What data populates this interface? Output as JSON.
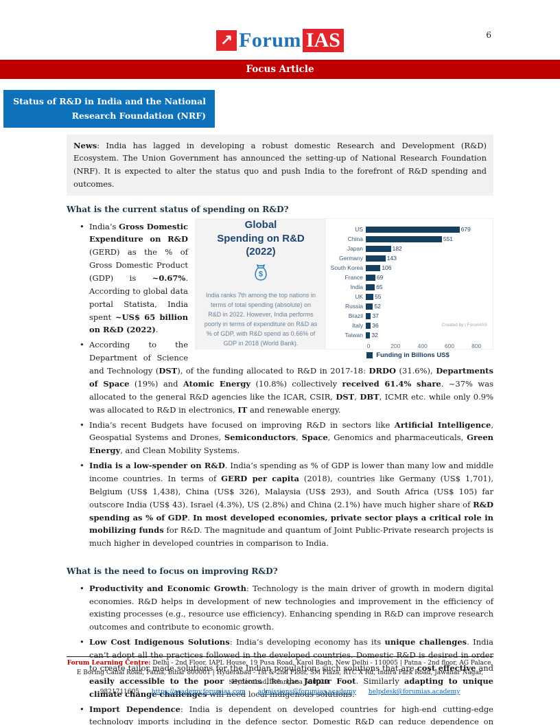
{
  "page": {
    "number": "6"
  },
  "logo": {
    "arrow": "↗",
    "forum": "Forum",
    "ias": "IAS"
  },
  "banner": {
    "label": "Focus Article"
  },
  "title_box": {
    "line1": "Status of R&D in India and the National",
    "line2": "Research Foundation (NRF)"
  },
  "news": {
    "label": "News",
    "text": ": India has lagged in developing a robust domestic Research and Development (R&D) Ecosystem. The Union Government has announced the setting-up of National Research Foundation (NRF). It is expected to alter the status quo and push India to the forefront of R&D spending and outcomes."
  },
  "infographic": {
    "title_line1": "Global",
    "title_line2": "Spending on R&D",
    "title_line3": "(2022)",
    "icon": "money-bag-icon",
    "description": "India ranks 7th among the top nations in terms of total spending (absolute) on R&D in 2022. However, India performs poorly in terms of expenditure on R&D as % of GDP, with R&D spend as 0.66% of GDP in 2018 (World Bank).",
    "credit": "Created by | ForumIAS"
  },
  "chart_data": {
    "type": "bar",
    "orientation": "horizontal",
    "title": "Global Spending on R&D (2022)",
    "categories": [
      "US",
      "China",
      "Japan",
      "Germany",
      "South Korea",
      "France",
      "India",
      "UK",
      "Russia",
      "Brazil",
      "Italy",
      "Taiwan"
    ],
    "values": [
      679,
      551,
      182,
      143,
      106,
      69,
      65,
      55,
      52,
      37,
      36,
      32
    ],
    "xlim": [
      0,
      880
    ],
    "xticks": [
      0,
      200,
      400,
      600,
      800
    ],
    "legend": "Funding in Billions US$",
    "legend_position": "bottom",
    "grid": false,
    "bar_color": "#16405f"
  },
  "sections": [
    {
      "heading": "What is the current status of spending on R&D?",
      "bullets": [
        [
          {
            "t": "India’s "
          },
          {
            "b": true,
            "t": "Gross Domestic Expenditure on R&D"
          },
          {
            "t": " (GERD) as the % of Gross Domestic Product (GDP) is "
          },
          {
            "b": true,
            "t": "~0.67%"
          },
          {
            "t": ". According to global data portal Statista, India spent "
          },
          {
            "b": true,
            "t": "~US$ 65 billion on R&D (2022)"
          },
          {
            "t": "."
          }
        ],
        [
          {
            "t": "According to the Department of Science and Technology ("
          },
          {
            "b": true,
            "t": "DST"
          },
          {
            "t": "), of the funding allocated to R&D in 2017-18: "
          },
          {
            "b": true,
            "t": "DRDO"
          },
          {
            "t": " (31.6%), "
          },
          {
            "b": true,
            "t": "Departments of Space"
          },
          {
            "t": " (19%) and "
          },
          {
            "b": true,
            "t": "Atomic Energy"
          },
          {
            "t": " (10.8%) collectively "
          },
          {
            "b": true,
            "t": "received 61.4% share"
          },
          {
            "t": ". ~37% was allocated to the general R&D agencies like the ICAR, CSIR, "
          },
          {
            "b": true,
            "t": "DST"
          },
          {
            "t": ", "
          },
          {
            "b": true,
            "t": "DBT"
          },
          {
            "t": ", ICMR etc. while only 0.9% was allocated to R&D in electronics, "
          },
          {
            "b": true,
            "t": "IT"
          },
          {
            "t": " and renewable energy."
          }
        ],
        [
          {
            "t": "India’s recent Budgets have focused on improving R&D in sectors like "
          },
          {
            "b": true,
            "t": "Artificial Intelligence"
          },
          {
            "t": ", Geospatial Systems and Drones, "
          },
          {
            "b": true,
            "t": "Semiconductors"
          },
          {
            "t": ", "
          },
          {
            "b": true,
            "t": "Space"
          },
          {
            "t": ", Genomics and pharmaceuticals, "
          },
          {
            "b": true,
            "t": "Green Energy"
          },
          {
            "t": ", and Clean Mobility Systems."
          }
        ],
        [
          {
            "b": true,
            "t": "India is a low-spender on R&D"
          },
          {
            "t": ". India’s spending as % of GDP is lower than many low and middle income countries. In terms of "
          },
          {
            "b": true,
            "t": "GERD per capita"
          },
          {
            "t": " (2018), countries like Germany (US$ 1,701), Belgium (US$ 1,438), China (US$ 326), Malaysia (US$ 293), and South Africa (US$ 105) far outscore India (US$ 43). Israel (4.3%), US (2.8%) and China (2.1%) have much higher share of "
          },
          {
            "b": true,
            "t": "R&D spending as % of GDP"
          },
          {
            "t": ".  "
          },
          {
            "b": true,
            "t": "In most developed economies, private sector plays a critical role in mobilizing funds"
          },
          {
            "t": " for R&D. The magnitude and quantum of Joint Public-Private research projects is much higher in developed countries in comparison to India."
          }
        ]
      ]
    },
    {
      "heading": "What is the need to focus on improving R&D?",
      "bullets": [
        [
          {
            "b": true,
            "t": "Productivity and Economic Growth"
          },
          {
            "t": ": Technology is the main driver of growth in modern digital economies. R&D helps in development of new technologies and improvement in the efficiency of existing processes (e.g., resource use efficiency). Enhancing spending in R&D can improve research outcomes and contribute to economic growth."
          }
        ],
        [
          {
            "b": true,
            "t": "Low Cost Indigenous Solutions"
          },
          {
            "t": ": India’s developing economy has its "
          },
          {
            "b": true,
            "t": "unique challenges"
          },
          {
            "t": ". India can’t adopt all the practices followed in the developed countries. Domestic R&D is desired in order to create tailor made solutions for the Indian population; such solutions that are "
          },
          {
            "b": true,
            "t": "cost effective"
          },
          {
            "t": " and "
          },
          {
            "b": true,
            "t": "easily accessible to the poor"
          },
          {
            "t": " sections like the "
          },
          {
            "b": true,
            "t": "Jaipur Foot"
          },
          {
            "t": ". Similarly "
          },
          {
            "b": true,
            "t": "adapting to unique climate change challenges"
          },
          {
            "t": " will need local indigenous solutions."
          }
        ],
        [
          {
            "b": true,
            "t": "Import Dependence"
          },
          {
            "t": ": India is dependent on developed countries for high-end cutting-edge technology imports including in the defence sector. Domestic R&D can reduce dependence on imports."
          }
        ]
      ]
    }
  ],
  "footer": {
    "centre_label": "Forum Learning Centre:",
    "address": "Delhi - 2nd Floor, IAPL House, 19 Pusa Road, Karol Bagh, New Delhi - 110005 | Patna - 2nd floor, AG Palace, E Boring Canal Road, Patna, Bihar 800001 | Hyderabad - 1st & 2nd Floor, SM Plaza, RTC X Rd, Indira Park Road, Jawahar Nagar, Hyderabad, Telangana 500020",
    "phone": "9821711605",
    "links": [
      "https://academy.forumias.com",
      "admissions@forumias.academy",
      "helpdesk@forumias.academy"
    ]
  }
}
